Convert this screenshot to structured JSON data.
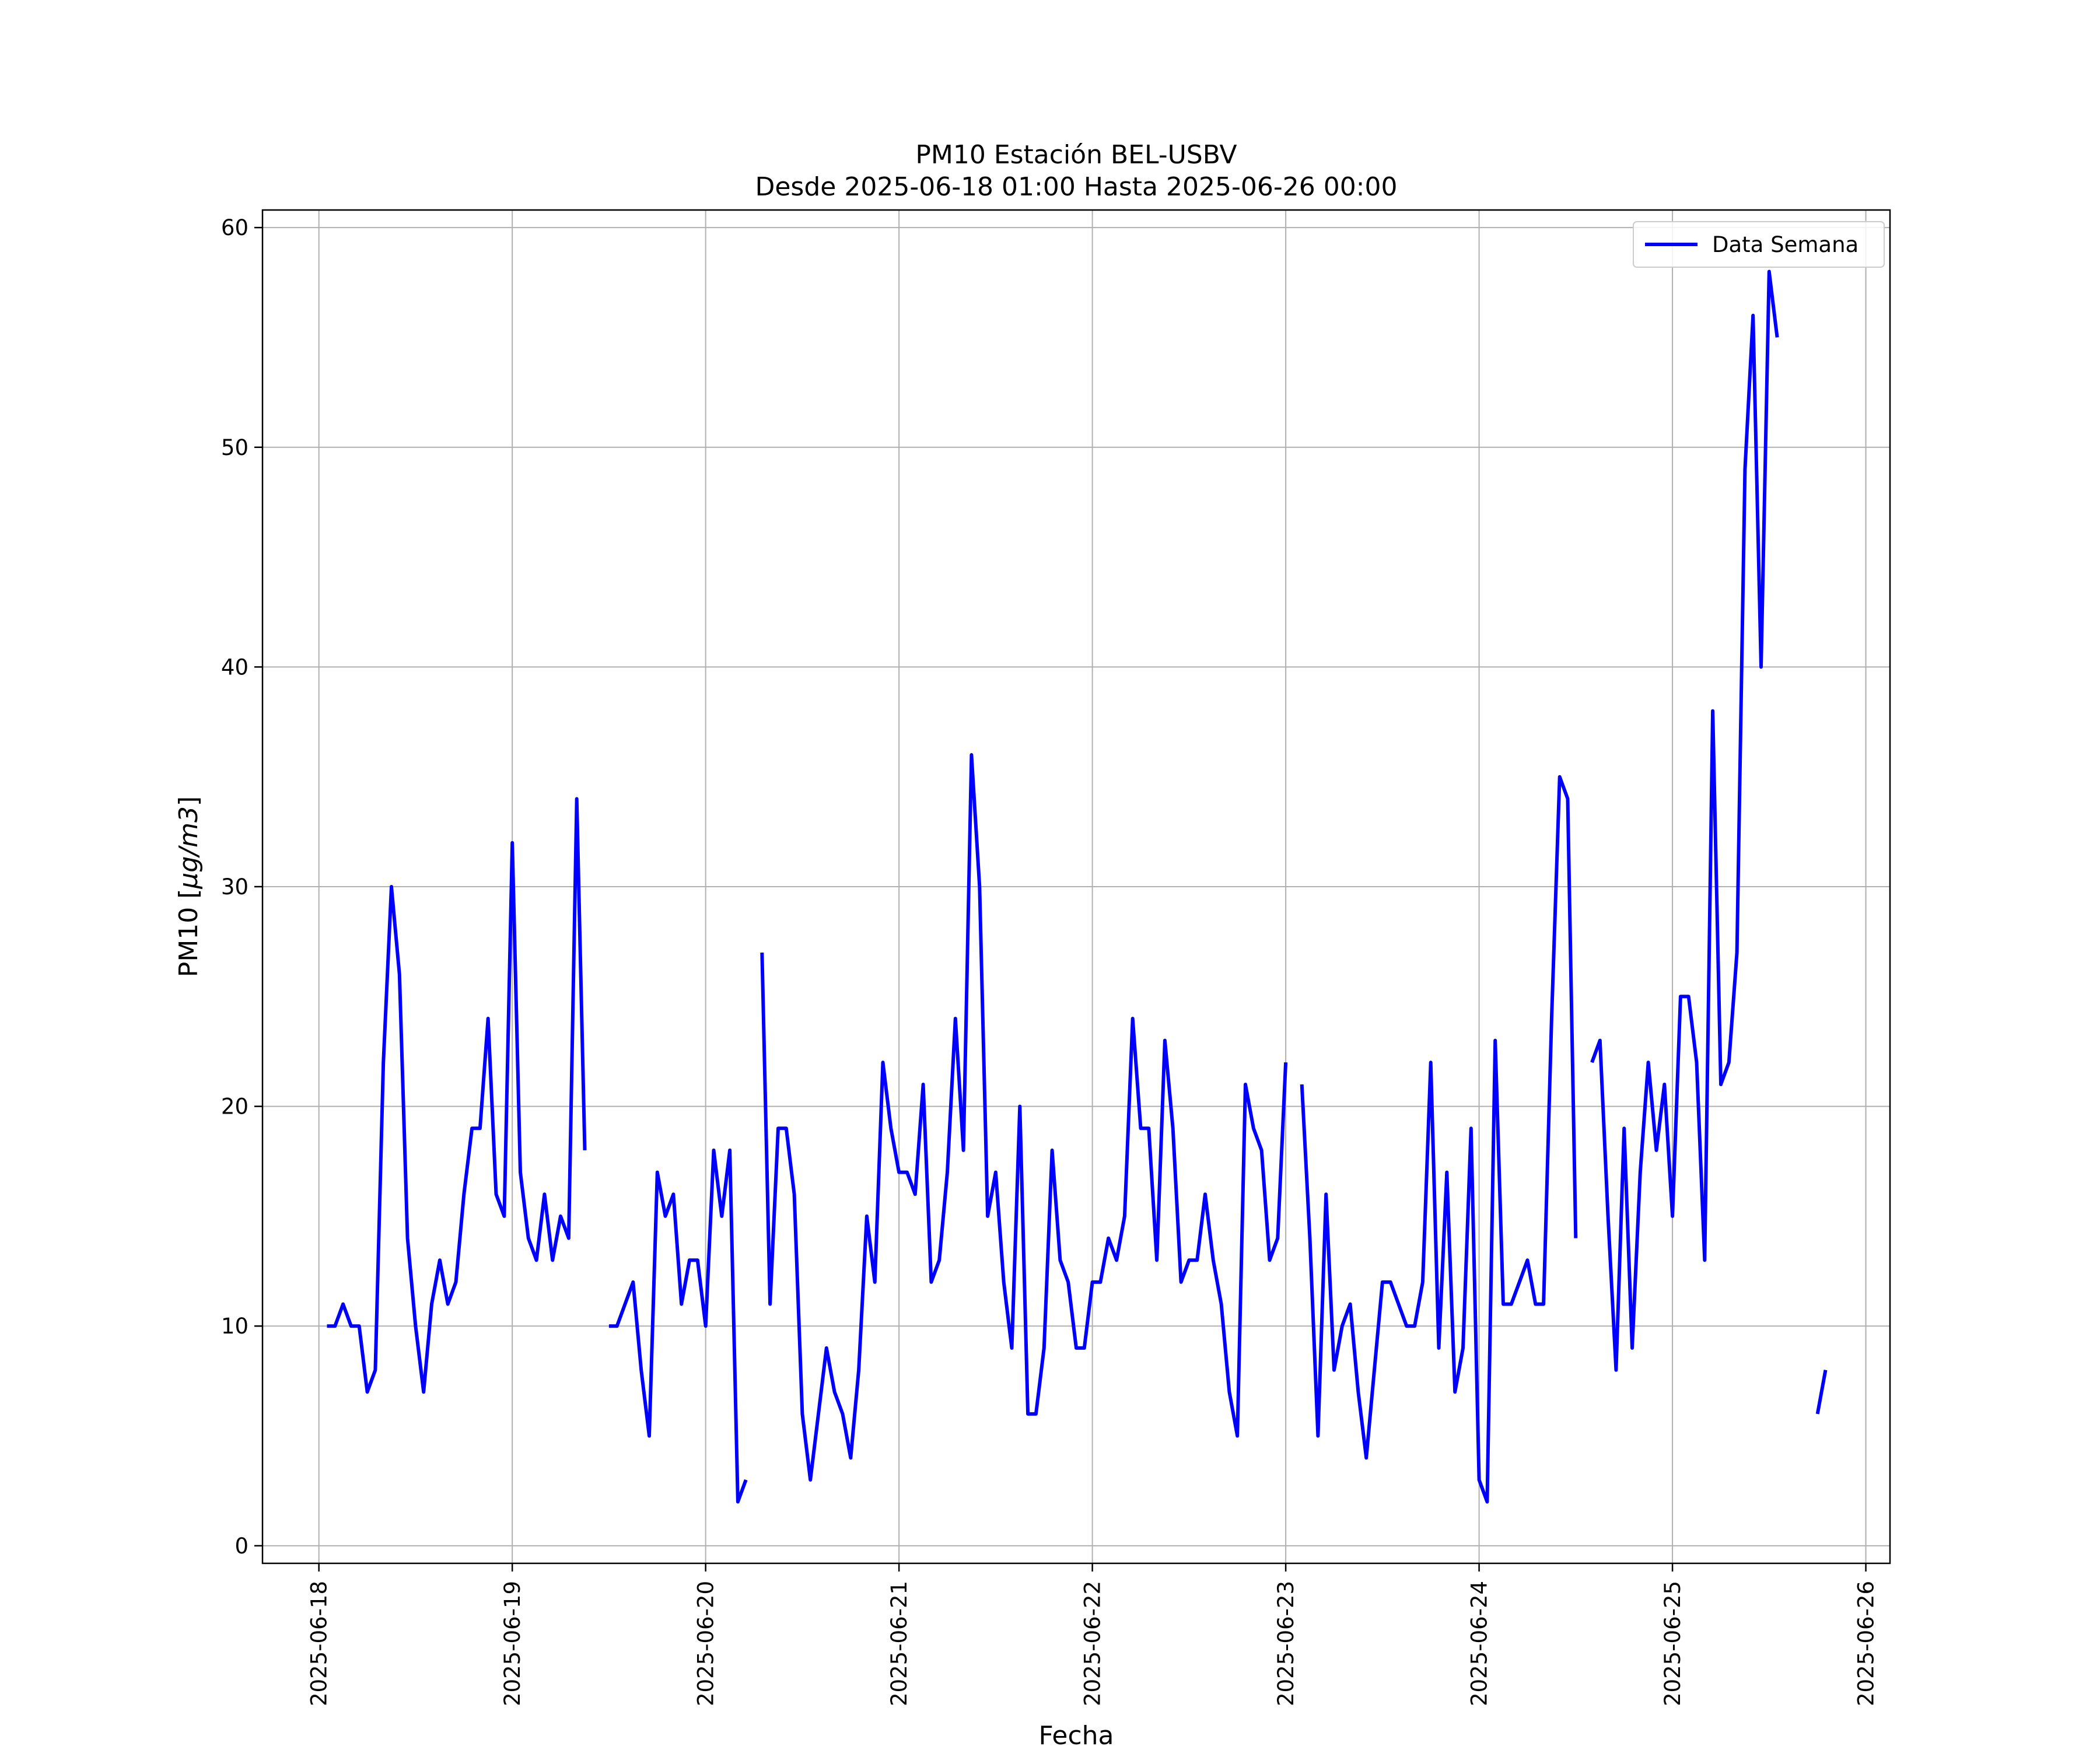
{
  "chart_data": {
    "type": "line",
    "title": "PM10 Estación BEL-USBV",
    "subtitle": "Desde 2025-06-18 01:00 Hasta 2025-06-26 00:00",
    "xlabel": "Fecha",
    "ylabel_prefix": "PM10 [",
    "ylabel_unit": "μg/m3",
    "ylabel_suffix": "]",
    "xlim": [
      "2025-06-17 17:00",
      "2025-06-26 03:00"
    ],
    "ylim": [
      -0.8,
      60.8
    ],
    "x_ticks": [
      "2025-06-18",
      "2025-06-19",
      "2025-06-20",
      "2025-06-21",
      "2025-06-22",
      "2025-06-23",
      "2025-06-24",
      "2025-06-25",
      "2025-06-26"
    ],
    "y_ticks": [
      "0",
      "10",
      "20",
      "30",
      "40",
      "50",
      "60"
    ],
    "grid": true,
    "legend_position": "top-right",
    "color": "#0000ff",
    "series": [
      {
        "name": "Data Semana",
        "start": "2025-06-18 01:00",
        "interval_hours": 1,
        "values": [
          10,
          10,
          11,
          10,
          10,
          7,
          8,
          22,
          30,
          26,
          14,
          10,
          7,
          11,
          13,
          11,
          12,
          16,
          19,
          19,
          24,
          16,
          15,
          32,
          17,
          14,
          13,
          16,
          13,
          15,
          14,
          34,
          18,
          null,
          null,
          10,
          10,
          11,
          12,
          8,
          5,
          17,
          15,
          16,
          11,
          13,
          13,
          10,
          18,
          15,
          18,
          2,
          3,
          null,
          27,
          11,
          19,
          19,
          16,
          6,
          3,
          6,
          9,
          7,
          6,
          4,
          8,
          15,
          12,
          22,
          19,
          17,
          17,
          16,
          21,
          12,
          13,
          17,
          24,
          18,
          36,
          30,
          15,
          17,
          12,
          9,
          20,
          6,
          6,
          9,
          18,
          13,
          12,
          9,
          9,
          12,
          12,
          14,
          13,
          15,
          24,
          19,
          19,
          13,
          23,
          19,
          12,
          13,
          13,
          16,
          13,
          11,
          7,
          5,
          21,
          19,
          18,
          13,
          14,
          22,
          null,
          21,
          14,
          5,
          16,
          8,
          10,
          11,
          7,
          4,
          8,
          12,
          12,
          11,
          10,
          10,
          12,
          22,
          9,
          17,
          7,
          9,
          19,
          3,
          2,
          23,
          11,
          11,
          12,
          13,
          11,
          11,
          24,
          35,
          34,
          14,
          null,
          22,
          23,
          15,
          8,
          19,
          9,
          17,
          22,
          18,
          21,
          15,
          25,
          25,
          22,
          13,
          38,
          21,
          22,
          27,
          49,
          56,
          40,
          58,
          55,
          null,
          null,
          null,
          null,
          6,
          8
        ]
      }
    ]
  }
}
